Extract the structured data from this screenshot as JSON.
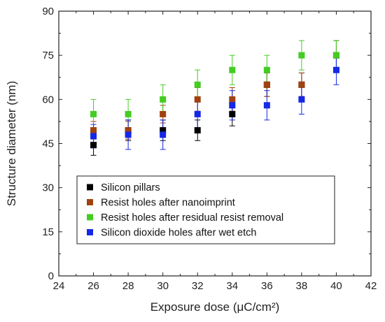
{
  "chart_data": {
    "type": "scatter",
    "xlabel": "Exposure dose (μC/cm²)",
    "ylabel": "Structure diameter (nm)",
    "xlim": [
      24,
      42
    ],
    "ylim": [
      0,
      90
    ],
    "xticks": [
      24,
      26,
      28,
      30,
      32,
      34,
      36,
      38,
      40,
      42
    ],
    "yticks": [
      0,
      15,
      30,
      45,
      60,
      75,
      90
    ],
    "grid": false,
    "legend_position": "lower-left",
    "series": [
      {
        "name": "Silicon pillars",
        "color": "#000000",
        "points": [
          {
            "x": 26,
            "y": 44.5,
            "err": 3.5
          },
          {
            "x": 28,
            "y": 49.5,
            "err": 3.5
          },
          {
            "x": 30,
            "y": 49.5,
            "err": 3.5
          },
          {
            "x": 32,
            "y": 49.5,
            "err": 3.5
          },
          {
            "x": 34,
            "y": 55,
            "err": 4
          },
          {
            "x": 36,
            "y": 65,
            "err": 4
          },
          {
            "x": 38,
            "y": 65,
            "err": 4
          },
          {
            "x": 40,
            "y": 75,
            "err": 5
          }
        ]
      },
      {
        "name": "Resist holes after nanoimprint",
        "color": "#a0420f",
        "points": [
          {
            "x": 26,
            "y": 49.5,
            "err": 3
          },
          {
            "x": 28,
            "y": 49.5,
            "err": 3
          },
          {
            "x": 30,
            "y": 55,
            "err": 3
          },
          {
            "x": 32,
            "y": 60,
            "err": 4
          },
          {
            "x": 34,
            "y": 60,
            "err": 4
          },
          {
            "x": 36,
            "y": 65,
            "err": 4
          },
          {
            "x": 38,
            "y": 65,
            "err": 4
          },
          {
            "x": 40,
            "y": 75,
            "err": 5
          }
        ]
      },
      {
        "name": "Resist holes after residual resist removal",
        "color": "#44cc22",
        "points": [
          {
            "x": 26,
            "y": 55,
            "err": 5
          },
          {
            "x": 28,
            "y": 55,
            "err": 5
          },
          {
            "x": 30,
            "y": 60,
            "err": 5
          },
          {
            "x": 32,
            "y": 65,
            "err": 5
          },
          {
            "x": 34,
            "y": 70,
            "err": 5
          },
          {
            "x": 36,
            "y": 70,
            "err": 5
          },
          {
            "x": 38,
            "y": 75,
            "err": 5
          },
          {
            "x": 40,
            "y": 75,
            "err": 5
          }
        ]
      },
      {
        "name": "Silicon dioxide holes after wet etch",
        "color": "#1428e6",
        "points": [
          {
            "x": 26,
            "y": 47.5,
            "err": 4
          },
          {
            "x": 28,
            "y": 48,
            "err": 5
          },
          {
            "x": 30,
            "y": 48,
            "err": 5
          },
          {
            "x": 32,
            "y": 55,
            "err": 5
          },
          {
            "x": 34,
            "y": 58,
            "err": 5
          },
          {
            "x": 36,
            "y": 58,
            "err": 5
          },
          {
            "x": 38,
            "y": 60,
            "err": 5
          },
          {
            "x": 40,
            "y": 70,
            "err": 5
          }
        ]
      }
    ]
  }
}
